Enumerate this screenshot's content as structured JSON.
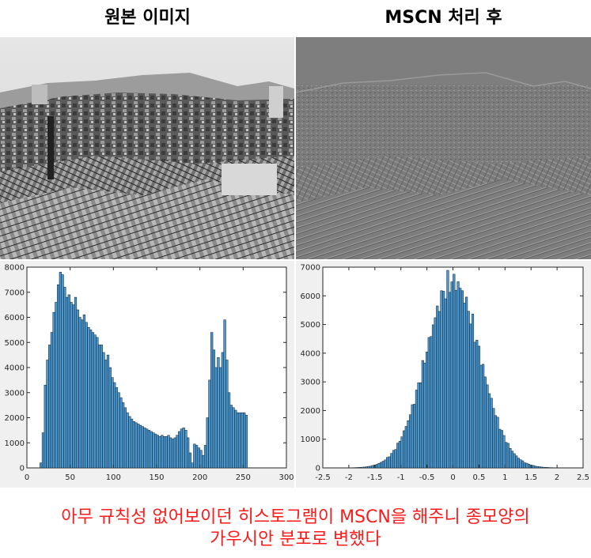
{
  "titles": {
    "original": "원본 이미지",
    "mscn": "MSCN 처리 후"
  },
  "caption": {
    "line1": "아무 규칙성 없어보이던 히스토그램이 MSCN을 해주니 종모양의",
    "line2": "가우시안 분포로 변했다"
  },
  "colors": {
    "bar_fill": "#4a98cf",
    "bar_edge": "#0d1a26",
    "panel_bg": "#f0f0f0",
    "caption": "#ff1a1a"
  },
  "chart_data": [
    {
      "type": "bar",
      "xlim": [
        0,
        300
      ],
      "ylim": [
        0,
        8000
      ],
      "xticks": [
        "0",
        "50",
        "100",
        "150",
        "200",
        "250",
        "300"
      ],
      "yticks": [
        "0",
        "1000",
        "2000",
        "3000",
        "4000",
        "5000",
        "6000",
        "7000",
        "8000"
      ],
      "bin_width": 2.5,
      "x": [
        15,
        17.5,
        20,
        22.5,
        25,
        27.5,
        30,
        32.5,
        35,
        37.5,
        40,
        42.5,
        45,
        47.5,
        50,
        52.5,
        55,
        57.5,
        60,
        62.5,
        65,
        67.5,
        70,
        72.5,
        75,
        77.5,
        80,
        82.5,
        85,
        87.5,
        90,
        92.5,
        95,
        97.5,
        100,
        102.5,
        105,
        107.5,
        110,
        112.5,
        115,
        117.5,
        120,
        122.5,
        125,
        127.5,
        130,
        132.5,
        135,
        137.5,
        140,
        142.5,
        145,
        147.5,
        150,
        152.5,
        155,
        157.5,
        160,
        162.5,
        165,
        167.5,
        170,
        172.5,
        175,
        177.5,
        180,
        182.5,
        185,
        187.5,
        190,
        192.5,
        195,
        197.5,
        200,
        202.5,
        205,
        207.5,
        210,
        212.5,
        215,
        217.5,
        220,
        222.5,
        225,
        227.5,
        230,
        232.5,
        235,
        237.5,
        240,
        242.5,
        245,
        247.5,
        250,
        252.5
      ],
      "values": [
        200,
        1400,
        3300,
        4300,
        4900,
        5400,
        6200,
        6600,
        7300,
        7800,
        7700,
        7200,
        6800,
        6900,
        6600,
        6500,
        6800,
        6300,
        6000,
        5900,
        6100,
        5800,
        5600,
        5500,
        5400,
        5300,
        5200,
        4900,
        4900,
        4600,
        4300,
        4500,
        4000,
        3600,
        3400,
        3200,
        3000,
        2800,
        2600,
        2400,
        2200,
        2050,
        1950,
        1850,
        1800,
        1750,
        1700,
        1650,
        1600,
        1550,
        1500,
        1450,
        1400,
        1350,
        1300,
        1250,
        1300,
        1250,
        1250,
        1300,
        1200,
        1150,
        1200,
        1300,
        1450,
        1550,
        1600,
        1500,
        1200,
        600,
        200,
        950,
        900,
        800,
        700,
        500,
        900,
        2000,
        3500,
        5400,
        4700,
        4000,
        4400,
        4000,
        4600,
        5900,
        4300,
        3000,
        2500,
        2400,
        2300,
        2200,
        2200,
        2200,
        2200,
        2100
      ],
      "note_values": "approx"
    },
    {
      "type": "bar",
      "xlim": [
        -2.5,
        2.5
      ],
      "ylim": [
        0,
        7000
      ],
      "xticks": [
        "-2.5",
        "-2",
        "-1.5",
        "-1",
        "-0.5",
        "0",
        "0.5",
        "1",
        "1.5",
        "2",
        "2.5"
      ],
      "yticks": [
        "0",
        "1000",
        "2000",
        "3000",
        "4000",
        "5000",
        "6000",
        "7000"
      ]
    }
  ]
}
